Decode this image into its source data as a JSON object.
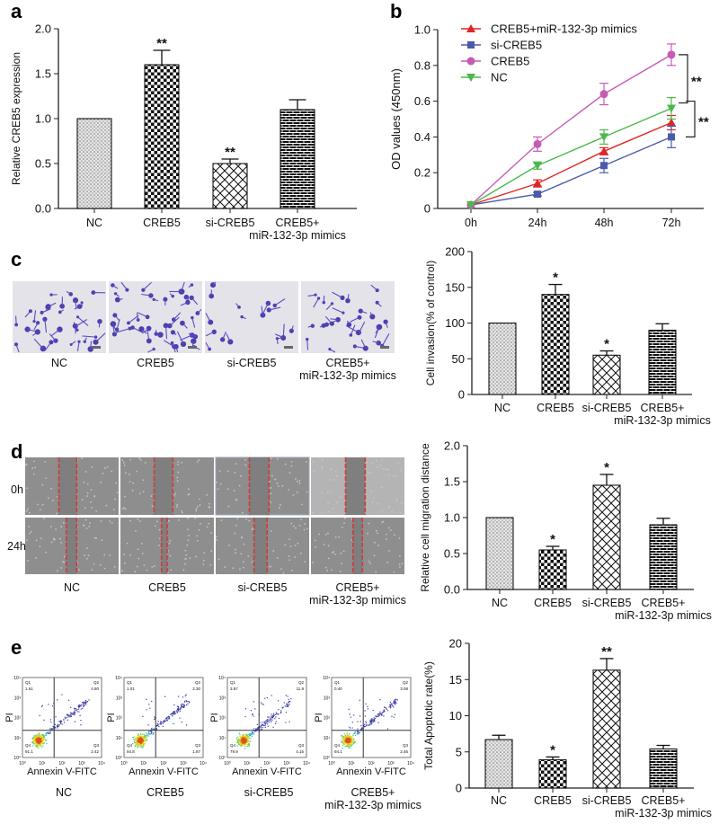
{
  "panels": {
    "a": "a",
    "b": "b",
    "c": "c",
    "d": "d",
    "e": "e"
  },
  "groups": [
    "NC",
    "CREB5",
    "si-CREB5",
    "CREB5+\nmiR-132-3p mimics"
  ],
  "scratch_rows": [
    "0h",
    "24h"
  ],
  "flow": {
    "xlabel": "Annexin V-FITC",
    "ylabel": "PI",
    "tick_labels": [
      "10⁰",
      "10¹",
      "10²",
      "10³",
      "10⁴"
    ],
    "quadrant_names": [
      "Q1",
      "Q2",
      "Q3",
      "Q4"
    ],
    "plots": [
      {
        "group": "NC",
        "Q1": "1.61",
        "Q2": "4.80",
        "Q3": "2.42",
        "Q4": "91.1"
      },
      {
        "group": "CREB5",
        "Q1": "1.01",
        "Q2": "2.30",
        "Q3": "1.87",
        "Q4": "94.8"
      },
      {
        "group": "si-CREB5",
        "Q1": "3.87",
        "Q2": "11.9",
        "Q3": "4.15",
        "Q4": "79.9"
      },
      {
        "group": "CREB5+miR-132-3p mimics",
        "Q1": "0.40",
        "Q2": "3.08",
        "Q3": "2.46",
        "Q4": "94.1"
      }
    ]
  },
  "pattern_colors": {
    "bar_stroke": "#000000",
    "bar_fill_dark": "#111111",
    "bar_fill_light": "#ffffff"
  },
  "chart_data": [
    {
      "panel": "a",
      "type": "bar",
      "categories": [
        "NC",
        "CREB5",
        "si-CREB5",
        "CREB5+\nmiR-132-3p mimics"
      ],
      "values": [
        1.0,
        1.6,
        0.5,
        1.1
      ],
      "errors": [
        0,
        0.16,
        0.05,
        0.11
      ],
      "annotations": [
        "",
        "**",
        "**",
        ""
      ],
      "ylabel": "Relative CREB5 expression",
      "ylim": [
        0,
        2.0
      ],
      "yticks": [
        0,
        0.5,
        1.0,
        1.5,
        2.0
      ],
      "ytick_labels": [
        "0.0",
        "0.5",
        "1.0",
        "1.5",
        "2.0"
      ],
      "grid": false
    },
    {
      "panel": "b",
      "type": "line",
      "x": [
        "0h",
        "24h",
        "48h",
        "72h"
      ],
      "ylabel": "OD values (450nm)",
      "ylim": [
        0,
        1.0
      ],
      "yticks": [
        0,
        0.2,
        0.4,
        0.6,
        0.8,
        1.0
      ],
      "ytick_labels": [
        "0",
        "0.2",
        "0.4",
        "0.6",
        "0.8",
        "1.0"
      ],
      "legend": "top-left",
      "grid": false,
      "series": [
        {
          "name": "CREB5+miR-132-3p mimics",
          "color": "#e02424",
          "marker": "triangle-up",
          "values": [
            0.02,
            0.14,
            0.32,
            0.48
          ],
          "errors": [
            0,
            0.02,
            0.02,
            0.04
          ]
        },
        {
          "name": "si-CREB5",
          "color": "#4b5bab",
          "marker": "square",
          "values": [
            0.02,
            0.08,
            0.24,
            0.4
          ],
          "errors": [
            0,
            0.01,
            0.04,
            0.06
          ]
        },
        {
          "name": "CREB5",
          "color": "#c65bb6",
          "marker": "circle",
          "values": [
            0.02,
            0.36,
            0.64,
            0.86
          ],
          "errors": [
            0,
            0.04,
            0.06,
            0.06
          ]
        },
        {
          "name": "NC",
          "color": "#4cb84c",
          "marker": "triangle-down",
          "values": [
            0.02,
            0.24,
            0.4,
            0.56
          ],
          "errors": [
            0,
            0.02,
            0.04,
            0.06
          ]
        }
      ],
      "significance": [
        {
          "between": [
            "CREB5",
            "NC"
          ],
          "at": "72h",
          "label": "**"
        },
        {
          "between": [
            "NC",
            "si-CREB5"
          ],
          "at": "72h",
          "label": "**"
        }
      ]
    },
    {
      "panel": "c",
      "type": "bar",
      "categories": [
        "NC",
        "CREB5",
        "si-CREB5",
        "CREB5+\nmiR-132-3p mimics"
      ],
      "values": [
        100,
        140,
        55,
        90
      ],
      "errors": [
        0,
        14,
        6,
        9
      ],
      "annotations": [
        "",
        "*",
        "*",
        ""
      ],
      "ylabel": "Cell invasion(% of control)",
      "ylim": [
        0,
        200
      ],
      "yticks": [
        0,
        50,
        100,
        150,
        200
      ],
      "ytick_labels": [
        "0",
        "50",
        "100",
        "150",
        "200"
      ],
      "grid": false
    },
    {
      "panel": "d",
      "type": "bar",
      "categories": [
        "NC",
        "CREB5",
        "si-CREB5",
        "CREB5+\nmiR-132-3p mimics"
      ],
      "values": [
        1.0,
        0.55,
        1.45,
        0.9
      ],
      "errors": [
        0,
        0.05,
        0.15,
        0.09
      ],
      "annotations": [
        "",
        "*",
        "*",
        ""
      ],
      "ylabel": "Relative cell migration distance",
      "ylim": [
        0,
        2.0
      ],
      "yticks": [
        0,
        0.5,
        1.0,
        1.5,
        2.0
      ],
      "ytick_labels": [
        "0.0",
        "0.5",
        "1.0",
        "1.5",
        "2.0"
      ],
      "grid": false
    },
    {
      "panel": "e",
      "type": "bar",
      "categories": [
        "NC",
        "CREB5",
        "si-CREB5",
        "CREB5+\nmiR-132-3p mimics"
      ],
      "values": [
        6.7,
        3.9,
        16.3,
        5.4
      ],
      "errors": [
        0.6,
        0.4,
        1.6,
        0.5
      ],
      "annotations": [
        "",
        "*",
        "**",
        ""
      ],
      "ylabel": "Total Apoptotic rate(%)",
      "ylim": [
        0,
        20
      ],
      "yticks": [
        0,
        5,
        10,
        15,
        20
      ],
      "ytick_labels": [
        "0",
        "5",
        "10",
        "15",
        "20"
      ],
      "grid": false
    }
  ]
}
